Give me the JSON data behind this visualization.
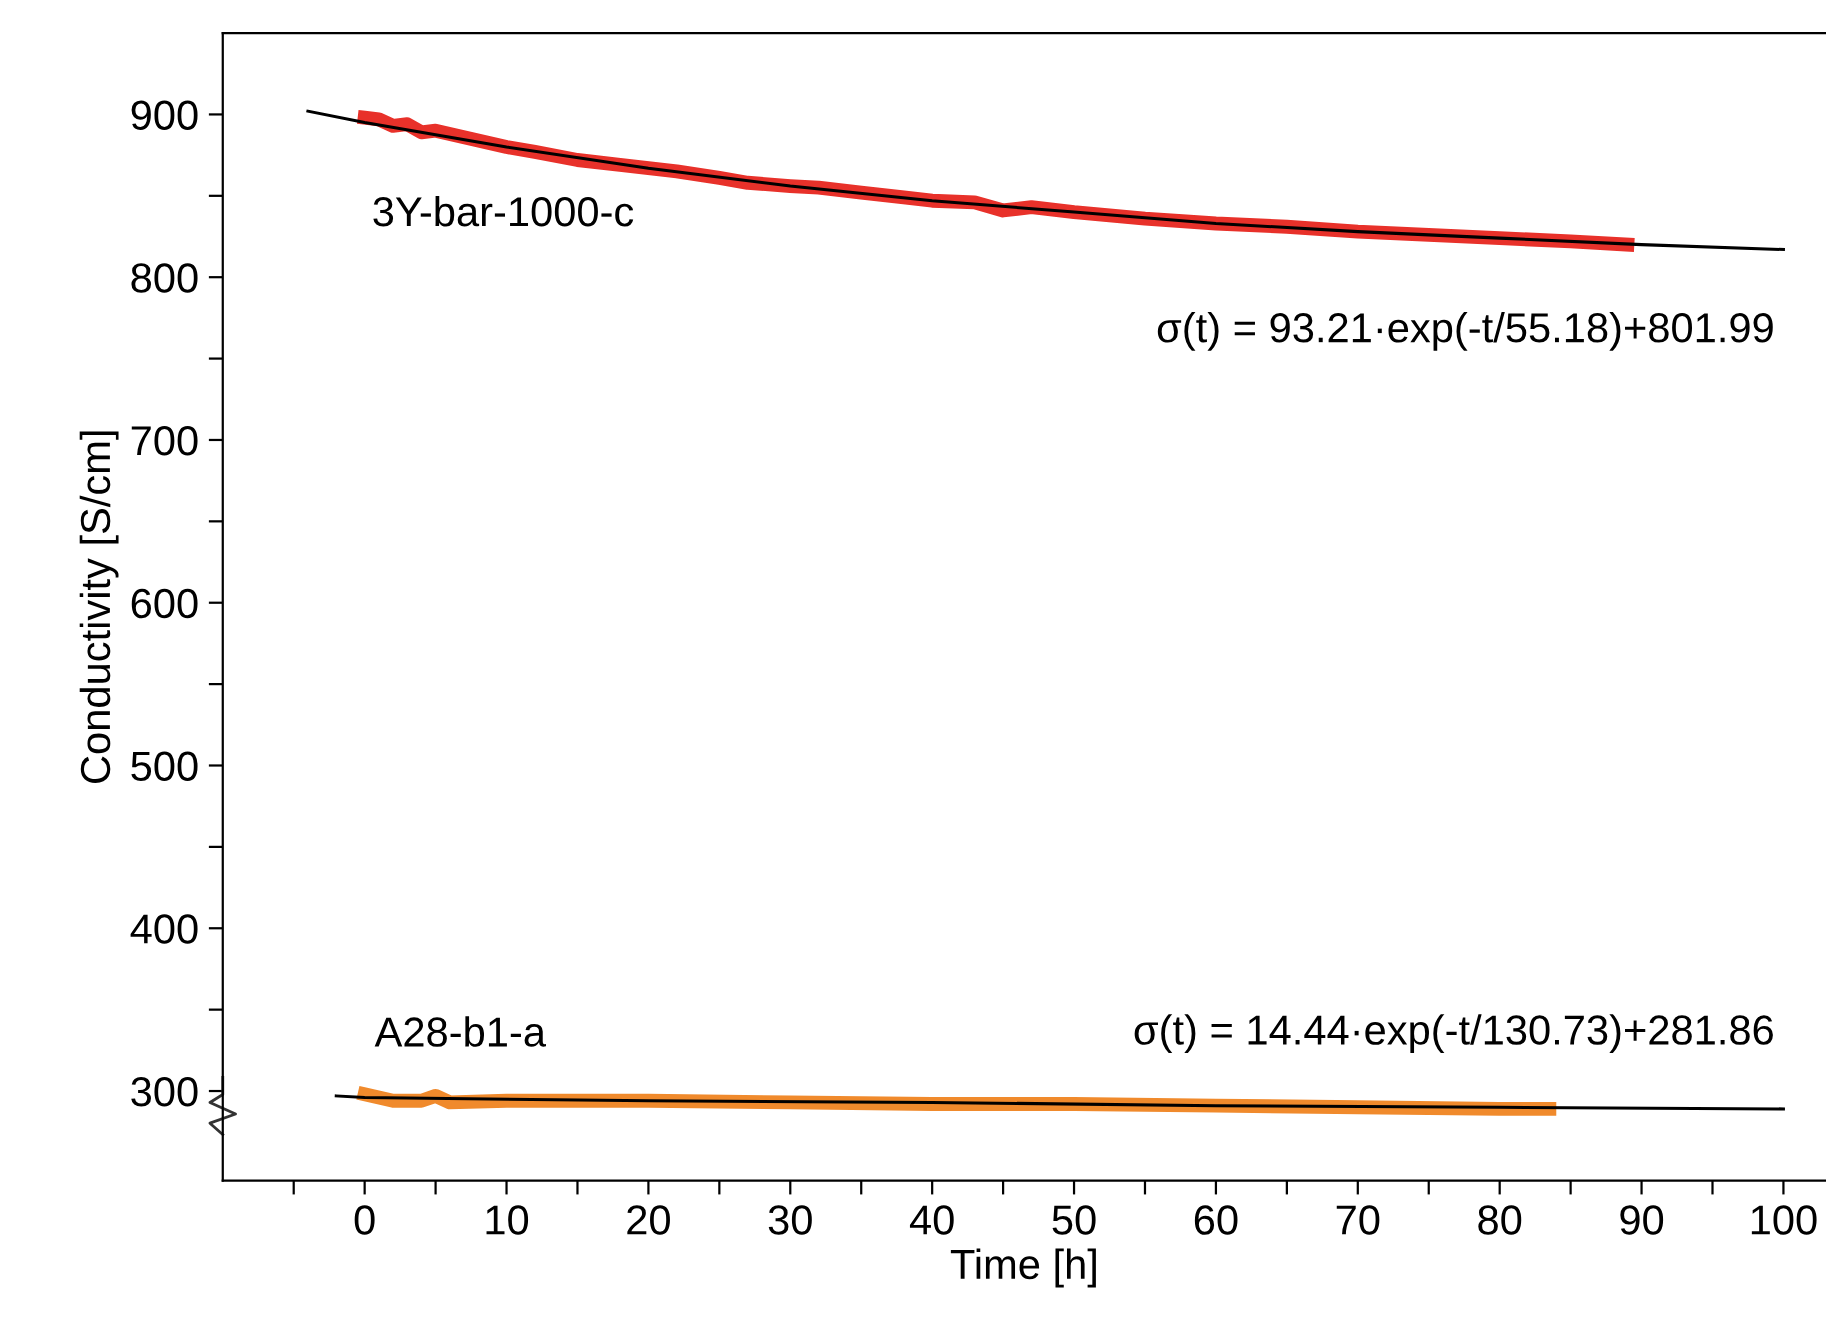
{
  "chart_data": {
    "type": "line",
    "xlabel": "Time [h]",
    "ylabel": "Conductivity [S/cm]",
    "xlim": [
      -10,
      103
    ],
    "ylim": [
      245,
      950
    ],
    "xticks": [
      {
        "value": -5,
        "label": null
      },
      0,
      {
        "value": 5,
        "label": null
      },
      10,
      {
        "value": 15,
        "label": null
      },
      20,
      {
        "value": 25,
        "label": null
      },
      30,
      {
        "value": 35,
        "label": null
      },
      40,
      {
        "value": 45,
        "label": null
      },
      50,
      {
        "value": 55,
        "label": null
      },
      60,
      {
        "value": 65,
        "label": null
      },
      70,
      {
        "value": 75,
        "label": null
      },
      80,
      {
        "value": 85,
        "label": null
      },
      90,
      {
        "value": 95,
        "label": null
      },
      100
    ],
    "yticks": [
      300,
      {
        "value": 350,
        "label": null
      },
      400,
      {
        "value": 450,
        "label": null
      },
      500,
      {
        "value": 550,
        "label": null
      },
      600,
      {
        "value": 650,
        "label": null
      },
      700,
      {
        "value": 750,
        "label": null
      },
      800,
      {
        "value": 850,
        "label": null
      },
      900
    ],
    "grid": false,
    "legend": false,
    "marker": "none",
    "line_style": "solid",
    "series": [
      {
        "name": "3Y-bar-1000-c",
        "color": "#e8312a",
        "x": [
          0,
          1,
          2,
          3,
          4,
          5,
          7,
          10,
          12,
          15,
          18,
          20,
          22,
          25,
          27,
          30,
          32,
          35,
          38,
          40,
          43,
          45,
          47,
          50,
          55,
          60,
          65,
          70,
          75,
          80,
          85,
          89
        ],
        "values": [
          898,
          897,
          893,
          894,
          889,
          890,
          886,
          880,
          877,
          872,
          869,
          867,
          865,
          861,
          858,
          856,
          855,
          852,
          849,
          847,
          846,
          841,
          843,
          840,
          836,
          833,
          831,
          828,
          826,
          824,
          822,
          820
        ]
      },
      {
        "name": "A28-b1-a",
        "color": "#f08a2c",
        "x": [
          0,
          1,
          2,
          4,
          5,
          6,
          10,
          20,
          30,
          40,
          50,
          60,
          70,
          80,
          83.5
        ],
        "values": [
          298,
          296,
          294,
          294,
          297,
          293,
          294,
          294,
          293,
          292,
          292,
          291,
          290,
          289,
          289
        ]
      },
      {
        "color": "#000000",
        "x": [
          -4,
          0,
          10,
          20,
          30,
          40,
          50,
          60,
          70,
          80,
          90,
          100
        ],
        "values": [
          902,
          895,
          880,
          867,
          856,
          847,
          840,
          833,
          828,
          824,
          820,
          817
        ]
      },
      {
        "color": "#000000",
        "x": [
          -2,
          0,
          20,
          40,
          60,
          80,
          100
        ],
        "values": [
          297,
          296,
          294,
          293,
          291,
          290,
          289
        ]
      }
    ],
    "annotations": [
      "σ(t) = 93.21·exp(-t/55.18)+801.99",
      "σ(t) = 14.44·exp(-t/130.73)+281.86"
    ]
  }
}
